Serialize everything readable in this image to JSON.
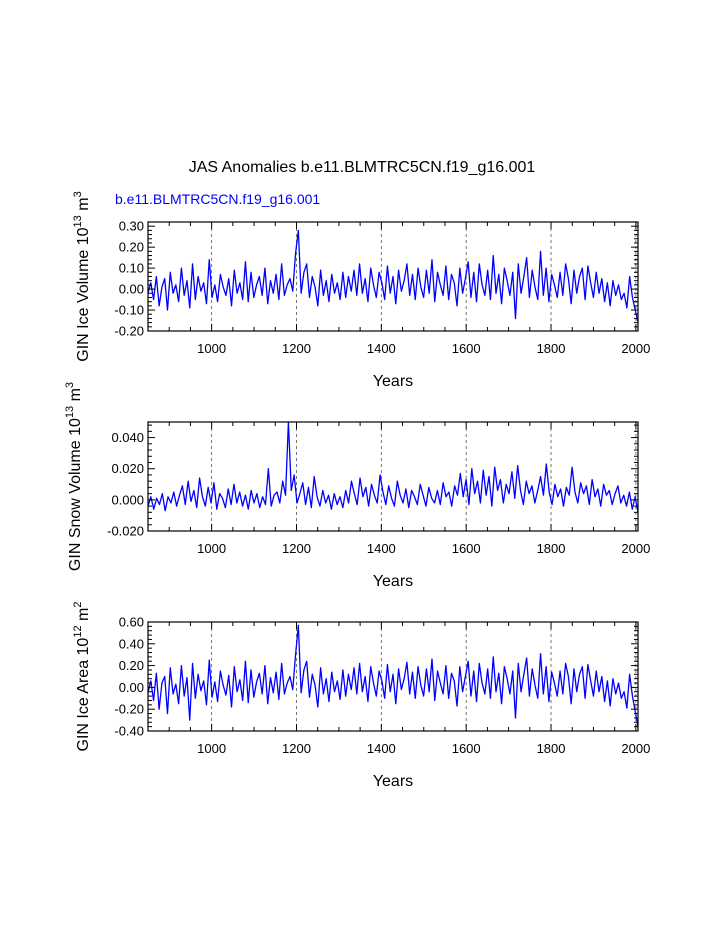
{
  "figure": {
    "title": "JAS Anomalies b.e11.BLMTRC5CN.f19_g16.001",
    "legend_label": "b.e11.BLMTRC5CN.f19_g16.001"
  },
  "colors": {
    "series": "#0000ff",
    "axis": "#000000",
    "grid": "#555555",
    "legend": "#0000ff"
  },
  "chart_data": [
    {
      "type": "line",
      "panel": "ice-volume",
      "ylabel_main": "GIN Ice Volume 10",
      "ylabel_exp": "13",
      "ylabel_unit": " m",
      "ylabel_unit_exp": "3",
      "xlabel": "Years",
      "xlim": [
        850,
        2005
      ],
      "ylim": [
        -0.2,
        0.32
      ],
      "yticks": [
        -0.2,
        -0.1,
        0.0,
        0.1,
        0.2,
        0.3
      ],
      "ytick_labels": [
        "-0.20",
        "-0.10",
        "0.00",
        "0.10",
        "0.20",
        "0.30"
      ],
      "xticks": [
        1000,
        1200,
        1400,
        1600,
        1800,
        2000
      ],
      "xtick_labels": [
        "1000",
        "1200",
        "1400",
        "1600",
        "1800",
        "2000"
      ],
      "grid_x": [
        1000,
        1200,
        1400,
        1600,
        1800,
        2000
      ],
      "series": [
        {
          "name": "b.e11.BLMTRC5CN.f19_g16.001",
          "x_start": 850,
          "x_end": 2005,
          "values": [
            -0.02,
            0.03,
            -0.05,
            0.06,
            -0.08,
            0.01,
            0.05,
            -0.1,
            0.08,
            -0.02,
            0.02,
            -0.06,
            0.1,
            -0.03,
            0.04,
            -0.09,
            0.12,
            -0.05,
            0.06,
            -0.01,
            0.03,
            -0.07,
            0.14,
            -0.04,
            0.02,
            -0.06,
            0.07,
            0.01,
            -0.03,
            0.05,
            -0.08,
            0.09,
            -0.02,
            0.03,
            -0.05,
            0.13,
            -0.06,
            0.08,
            -0.04,
            0.02,
            0.06,
            -0.03,
            0.1,
            -0.07,
            0.04,
            -0.02,
            0.07,
            -0.05,
            0.12,
            -0.03,
            0.02,
            0.05,
            -0.01,
            0.17,
            0.28,
            -0.02,
            0.08,
            0.12,
            -0.04,
            0.06,
            0.01,
            -0.08,
            0.09,
            -0.03,
            0.04,
            -0.06,
            0.07,
            -0.02,
            0.03,
            -0.05,
            0.08,
            -0.04,
            0.06,
            -0.01,
            0.09,
            -0.03,
            0.12,
            -0.02,
            0.05,
            -0.06,
            0.1,
            0.02,
            -0.04,
            0.08,
            0.03,
            -0.05,
            0.11,
            -0.02,
            0.06,
            -0.07,
            0.09,
            -0.01,
            0.04,
            0.12,
            -0.03,
            0.07,
            -0.05,
            0.1,
            0.01,
            -0.04,
            0.09,
            -0.02,
            0.14,
            -0.06,
            0.08,
            0.02,
            -0.03,
            0.11,
            -0.05,
            0.07,
            0.03,
            -0.08,
            0.1,
            -0.02,
            0.05,
            0.13,
            -0.04,
            0.08,
            -0.06,
            0.12,
            0.02,
            -0.03,
            0.09,
            -0.05,
            0.16,
            -0.02,
            0.07,
            -0.07,
            0.1,
            0.04,
            -0.03,
            0.08,
            -0.14,
            0.12,
            -0.02,
            0.06,
            0.15,
            -0.04,
            0.09,
            0.01,
            -0.05,
            0.18,
            -0.03,
            0.1,
            -0.06,
            0.07,
            0.02,
            -0.04,
            0.08,
            -0.03,
            0.12,
            0.05,
            -0.07,
            0.09,
            -0.02,
            0.06,
            0.1,
            -0.05,
            0.11,
            0.03,
            -0.04,
            0.08,
            -0.02,
            0.05,
            -0.06,
            0.03,
            -0.08,
            0.04,
            -0.03,
            0.02,
            -0.05,
            -0.02,
            -0.09,
            0.06,
            -0.04,
            -0.1,
            -0.16
          ]
        }
      ]
    },
    {
      "type": "line",
      "panel": "snow-volume",
      "ylabel_main": "GIN Snow Volume 10",
      "ylabel_exp": "13",
      "ylabel_unit": " m",
      "ylabel_unit_exp": "3",
      "xlabel": "Years",
      "xlim": [
        850,
        2005
      ],
      "ylim": [
        -0.02,
        0.05
      ],
      "yticks": [
        -0.02,
        0.0,
        0.02,
        0.04
      ],
      "ytick_labels": [
        "-0.020",
        "0.000",
        "0.020",
        "0.040"
      ],
      "xticks": [
        1000,
        1200,
        1400,
        1600,
        1800,
        2000
      ],
      "xtick_labels": [
        "1000",
        "1200",
        "1400",
        "1600",
        "1800",
        "2000"
      ],
      "grid_x": [
        1000,
        1200,
        1400,
        1600,
        1800,
        2000
      ],
      "series": [
        {
          "name": "b.e11.BLMTRC5CN.f19_g16.001",
          "x_start": 850,
          "x_end": 2005,
          "values": [
            -0.004,
            0.002,
            -0.006,
            0.001,
            -0.003,
            0.004,
            -0.007,
            0.002,
            -0.002,
            0.005,
            -0.004,
            0.003,
            0.009,
            -0.003,
            0.012,
            -0.001,
            0.006,
            -0.005,
            0.014,
            0.002,
            -0.004,
            0.008,
            -0.002,
            0.011,
            -0.006,
            0.004,
            0.001,
            -0.005,
            0.007,
            -0.003,
            0.01,
            -0.002,
            0.005,
            -0.004,
            0.003,
            -0.006,
            0.006,
            -0.002,
            0.004,
            -0.005,
            0.002,
            -0.003,
            0.02,
            -0.004,
            0.003,
            0.005,
            -0.002,
            0.012,
            0.003,
            0.05,
            0.006,
            0.016,
            -0.002,
            0.004,
            0.011,
            -0.003,
            0.008,
            -0.005,
            0.015,
            0.002,
            -0.004,
            0.006,
            -0.002,
            0.003,
            -0.006,
            0.004,
            -0.003,
            0.002,
            -0.005,
            0.006,
            -0.002,
            0.012,
            0.004,
            -0.003,
            0.014,
            0.002,
            0.008,
            -0.004,
            0.01,
            0.003,
            -0.002,
            0.016,
            0.005,
            -0.003,
            0.009,
            0.001,
            -0.004,
            0.012,
            0.003,
            -0.002,
            0.007,
            -0.005,
            0.006,
            0.002,
            -0.003,
            0.01,
            0.003,
            -0.004,
            0.008,
            0.001,
            -0.002,
            0.006,
            -0.003,
            0.011,
            0.002,
            0.005,
            -0.004,
            0.009,
            0.003,
            0.017,
            0.002,
            0.013,
            -0.003,
            0.02,
            0.004,
            0.012,
            -0.002,
            0.019,
            0.003,
            0.015,
            -0.004,
            0.021,
            0.006,
            0.013,
            -0.002,
            0.01,
            0.004,
            0.018,
            0.001,
            0.022,
            0.006,
            -0.003,
            0.012,
            0.004,
            0.009,
            -0.002,
            0.006,
            0.015,
            0.003,
            0.023,
            0.005,
            -0.003,
            0.01,
            0.002,
            0.007,
            -0.004,
            0.008,
            0.003,
            0.021,
            0.005,
            -0.002,
            0.011,
            0.004,
            0.009,
            -0.003,
            0.013,
            0.002,
            0.007,
            -0.004,
            0.01,
            0.003,
            0.006,
            -0.003,
            0.004,
            0.009,
            -0.002,
            0.003,
            -0.004,
            0.005,
            -0.006,
            0.002,
            -0.008
          ]
        }
      ]
    },
    {
      "type": "line",
      "panel": "ice-area",
      "ylabel_main": "GIN Ice Area 10",
      "ylabel_exp": "12",
      "ylabel_unit": " m",
      "ylabel_unit_exp": "2",
      "xlabel": "Years",
      "xlim": [
        850,
        2005
      ],
      "ylim": [
        -0.4,
        0.6
      ],
      "yticks": [
        -0.4,
        -0.2,
        0.0,
        0.2,
        0.4,
        0.6
      ],
      "ytick_labels": [
        "-0.40",
        "-0.20",
        "0.00",
        "0.20",
        "0.40",
        "0.60"
      ],
      "xticks": [
        1000,
        1200,
        1400,
        1600,
        1800,
        2000
      ],
      "xtick_labels": [
        "1000",
        "1200",
        "1400",
        "1600",
        "1800",
        "2000"
      ],
      "grid_x": [
        1000,
        1200,
        1400,
        1600,
        1800,
        2000
      ],
      "series": [
        {
          "name": "b.e11.BLMTRC5CN.f19_g16.001",
          "x_start": 850,
          "x_end": 2005,
          "values": [
            -0.05,
            0.06,
            -0.12,
            0.13,
            -0.2,
            0.04,
            0.1,
            -0.24,
            0.18,
            -0.06,
            0.03,
            -0.15,
            0.2,
            -0.08,
            0.09,
            -0.3,
            0.22,
            -0.1,
            0.12,
            -0.03,
            0.06,
            -0.16,
            0.25,
            -0.09,
            0.05,
            -0.13,
            0.15,
            0.02,
            -0.07,
            0.11,
            -0.18,
            0.19,
            -0.04,
            0.07,
            -0.12,
            0.24,
            -0.14,
            0.16,
            -0.09,
            0.05,
            0.13,
            -0.06,
            0.2,
            -0.15,
            0.09,
            -0.05,
            0.14,
            -0.11,
            0.22,
            -0.06,
            0.04,
            0.1,
            -0.02,
            0.3,
            0.57,
            -0.05,
            0.16,
            0.24,
            -0.09,
            0.12,
            0.02,
            -0.18,
            0.18,
            -0.06,
            0.08,
            -0.13,
            0.14,
            -0.04,
            0.06,
            -0.11,
            0.16,
            -0.08,
            0.12,
            -0.02,
            0.18,
            -0.06,
            0.22,
            -0.04,
            0.1,
            -0.13,
            0.19,
            0.04,
            -0.08,
            0.15,
            0.06,
            -0.1,
            0.21,
            -0.04,
            0.12,
            -0.15,
            0.17,
            -0.02,
            0.08,
            0.23,
            -0.06,
            0.14,
            -0.1,
            0.19,
            0.02,
            -0.08,
            0.17,
            -0.04,
            0.26,
            -0.12,
            0.15,
            0.04,
            -0.06,
            0.2,
            -0.1,
            0.13,
            0.06,
            -0.17,
            0.19,
            -0.04,
            0.1,
            0.24,
            -0.08,
            0.15,
            -0.13,
            0.22,
            0.04,
            -0.06,
            0.17,
            -0.1,
            0.28,
            -0.04,
            0.13,
            -0.15,
            0.19,
            0.08,
            -0.06,
            0.15,
            -0.28,
            0.22,
            -0.04,
            0.12,
            0.27,
            -0.08,
            0.17,
            0.02,
            -0.1,
            0.31,
            -0.06,
            0.19,
            -0.13,
            0.14,
            0.04,
            -0.08,
            0.15,
            -0.06,
            0.22,
            0.1,
            -0.15,
            0.17,
            -0.04,
            0.12,
            0.19,
            -0.1,
            0.21,
            0.06,
            -0.08,
            0.15,
            -0.04,
            0.1,
            -0.13,
            0.06,
            -0.17,
            0.08,
            -0.06,
            0.04,
            -0.1,
            -0.04,
            -0.19,
            0.12,
            -0.08,
            -0.22,
            -0.36
          ]
        }
      ]
    }
  ]
}
